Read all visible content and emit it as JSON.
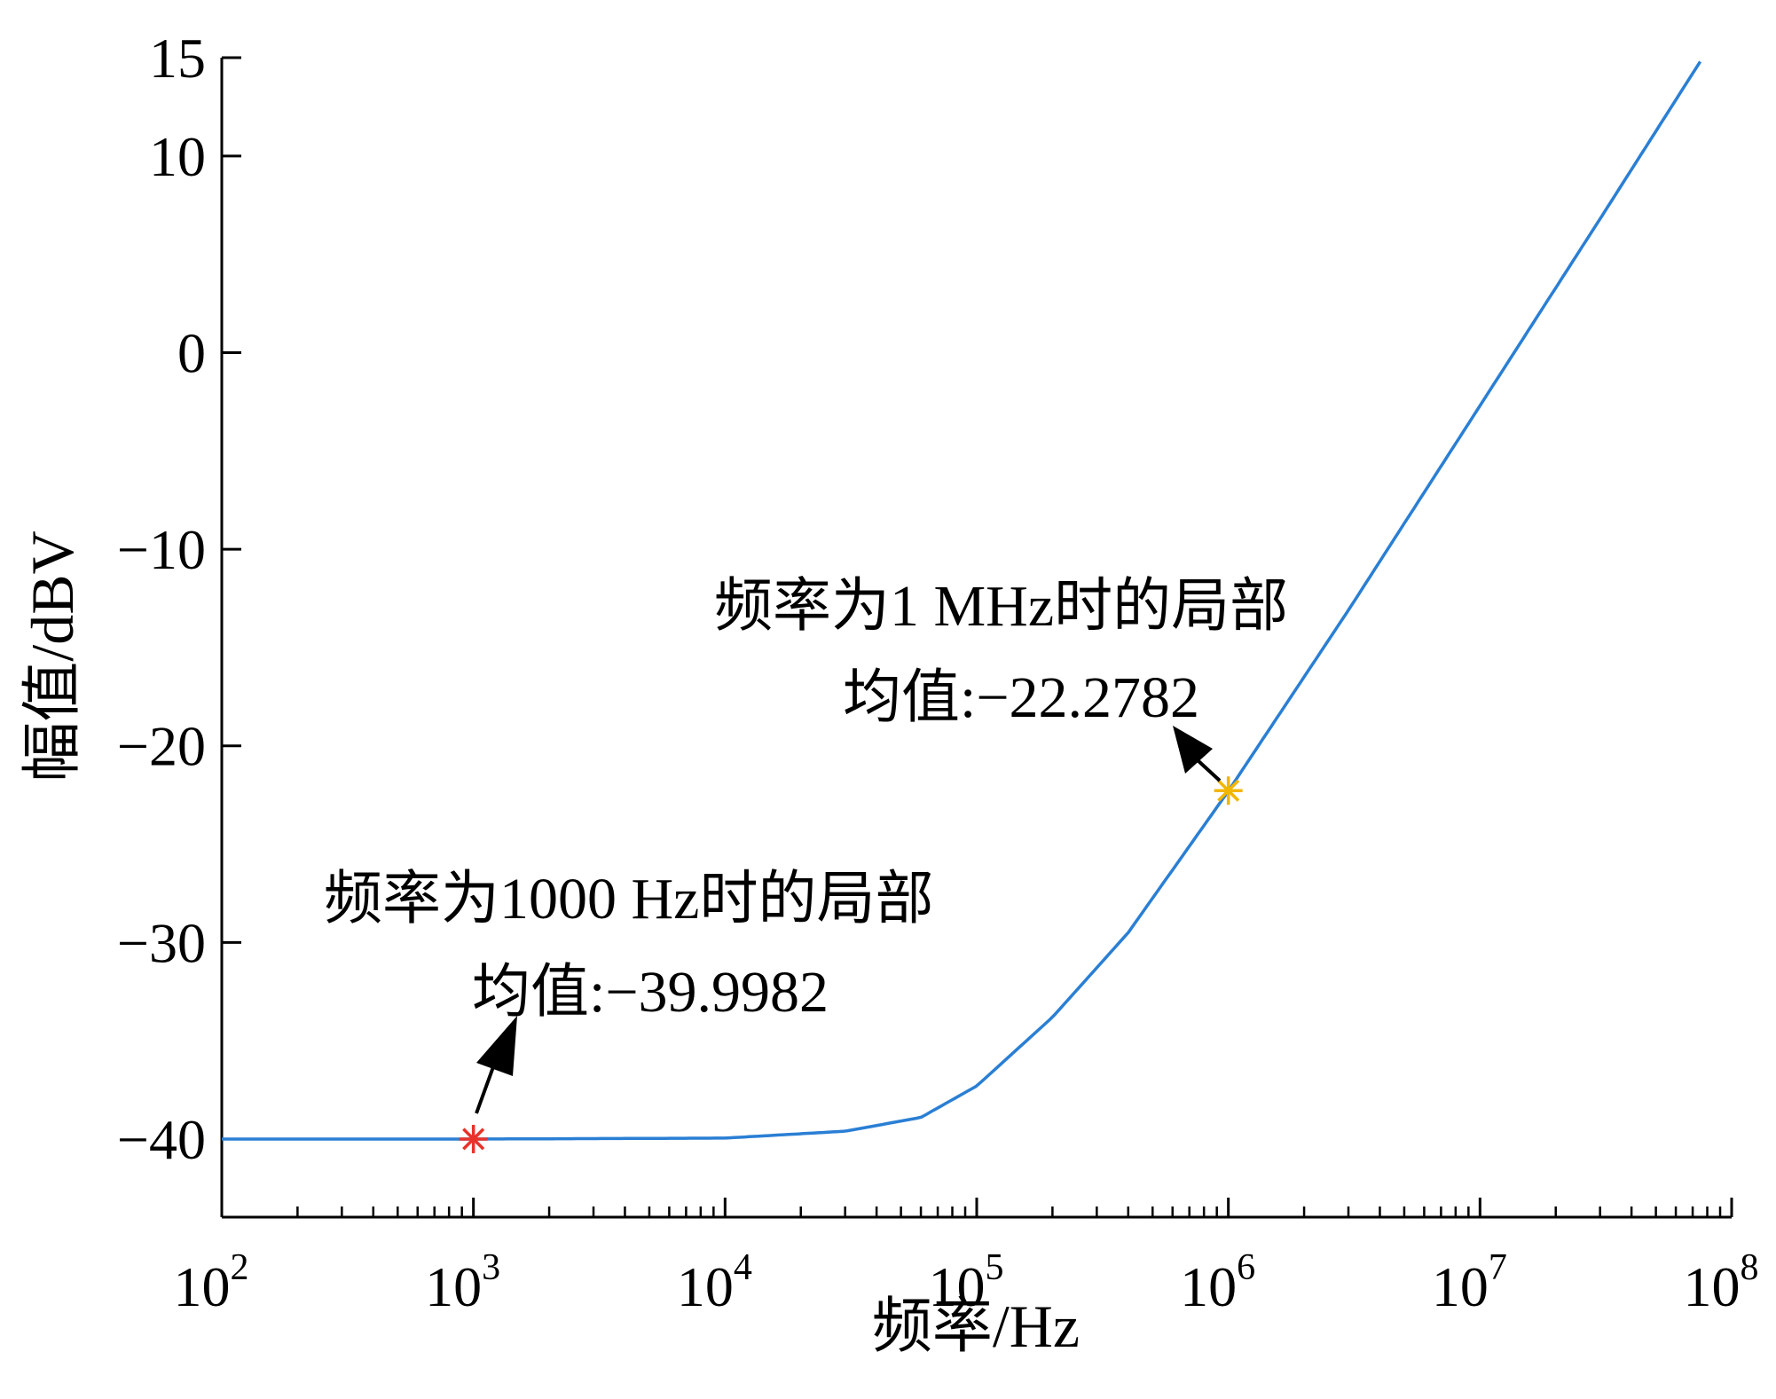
{
  "chart_data": {
    "type": "line",
    "xlabel": "频率/Hz",
    "ylabel": "幅值/dBV",
    "xscale": "log",
    "xlim": [
      100,
      100000000
    ],
    "ylim": [
      -44,
      16
    ],
    "x_ticks": [
      {
        "base": "10",
        "exp": "2"
      },
      {
        "base": "10",
        "exp": "3"
      },
      {
        "base": "10",
        "exp": "4"
      },
      {
        "base": "10",
        "exp": "5"
      },
      {
        "base": "10",
        "exp": "6"
      },
      {
        "base": "10",
        "exp": "7"
      },
      {
        "base": "10",
        "exp": "8"
      }
    ],
    "y_ticks": [
      "15",
      "10",
      "0",
      "−10",
      "−20",
      "−30",
      "−40"
    ],
    "y_tick_values": [
      15,
      10,
      0,
      -10,
      -20,
      -30,
      -40
    ],
    "grid": false,
    "line_color": "#2a7fd4",
    "series": [
      {
        "x": [
          100,
          1000,
          10000,
          30000,
          60000,
          100000,
          200000,
          400000,
          1000000,
          3000000,
          10000000,
          30000000,
          75000000
        ],
        "y": [
          -40,
          -40,
          -39.95,
          -39.6,
          -38.9,
          -37.3,
          -33.8,
          -29.5,
          -22.3,
          -13.1,
          -2.7,
          6.8,
          14.8
        ]
      }
    ],
    "markers": [
      {
        "x": 1000,
        "y": -39.9982,
        "color": "#e8322a"
      },
      {
        "x": 1000000,
        "y": -22.2782,
        "color": "#f2b600"
      }
    ],
    "annotations": [
      {
        "line1": "频率为1000 Hz时的局部",
        "line2": "均值:−39.9982"
      },
      {
        "line1": "频率为1 MHz时的局部",
        "line2": "均值:−22.2782"
      }
    ]
  }
}
